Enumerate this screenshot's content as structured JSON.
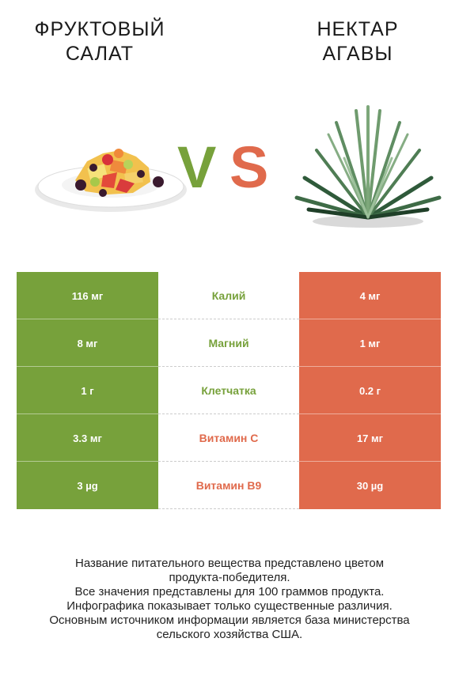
{
  "header": {
    "left_title": [
      "ФРУКТОВЫЙ",
      "САЛАТ"
    ],
    "right_title": [
      "НЕКТАР",
      "АГАВЫ"
    ],
    "vs_v": "V",
    "vs_s": "S"
  },
  "colors": {
    "winner_left": "#77a13b",
    "winner_right": "#e06a4c"
  },
  "images": {
    "left": "fruit-salad-plate-image",
    "right": "agave-plant-image"
  },
  "table": {
    "rows": [
      {
        "left": "116 мг",
        "nutrient": "Калий",
        "right": "4 мг",
        "winner": "left"
      },
      {
        "left": "8 мг",
        "nutrient": "Магний",
        "right": "1 мг",
        "winner": "left"
      },
      {
        "left": "1 г",
        "nutrient": "Клетчатка",
        "right": "0.2 г",
        "winner": "left"
      },
      {
        "left": "3.3 мг",
        "nutrient": "Витамин C",
        "right": "17 мг",
        "winner": "right"
      },
      {
        "left": "3 µg",
        "nutrient": "Витамин B9",
        "right": "30 µg",
        "winner": "right"
      }
    ]
  },
  "footer": {
    "lines": [
      "Название питательного вещества представлено цветом",
      "продукта-победителя.",
      "Все значения представлены для 100 граммов продукта.",
      "Инфографика показывает только существенные различия.",
      "Основным источником информации является база министерства",
      "сельского хозяйства США."
    ]
  }
}
